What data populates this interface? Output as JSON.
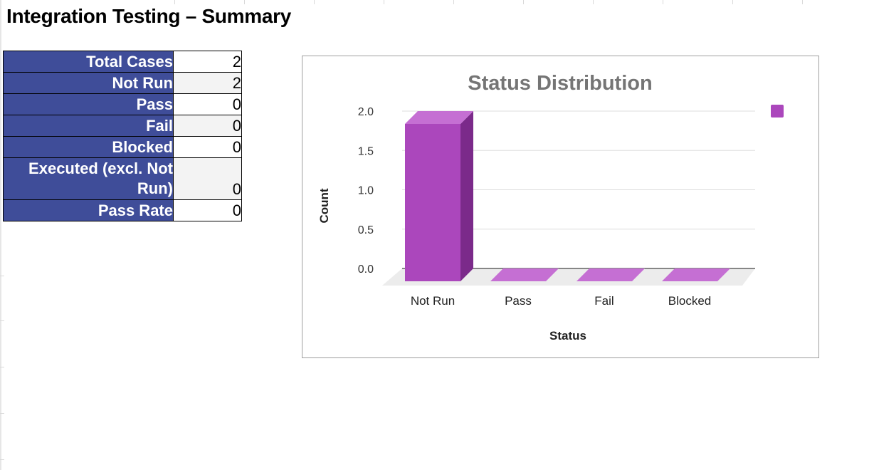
{
  "sheet": {
    "title": "Integration Testing – Summary"
  },
  "summary_table": {
    "rows": [
      {
        "label": "Total Cases",
        "value": "2"
      },
      {
        "label": "Not Run",
        "value": "2"
      },
      {
        "label": "Pass",
        "value": "0"
      },
      {
        "label": "Fail",
        "value": "0"
      },
      {
        "label": "Blocked",
        "value": "0"
      },
      {
        "label": "Executed (excl. Not Run)",
        "label_line1": "Executed (excl. Not",
        "label_line2": "Run)",
        "value": "0"
      },
      {
        "label": "Pass Rate",
        "value": "0"
      }
    ]
  },
  "colors": {
    "header_fill": "#3f4d99",
    "bar_front": "#ab47bc",
    "bar_side": "#7b2a8a",
    "bar_top": "#c56fd3",
    "axis_text": "#333333",
    "title_text": "#757575"
  },
  "chart_data": {
    "type": "bar",
    "title": "Status Distribution",
    "xlabel": "Status",
    "ylabel": "Count",
    "categories": [
      "Not Run",
      "Pass",
      "Fail",
      "Blocked"
    ],
    "values": [
      2,
      0,
      0,
      0
    ],
    "ylim": [
      0,
      2
    ],
    "yticks": [
      "0.0",
      "0.5",
      "1.0",
      "1.5",
      "2.0"
    ],
    "grid": true,
    "legend": "top-right",
    "style": "3d"
  }
}
